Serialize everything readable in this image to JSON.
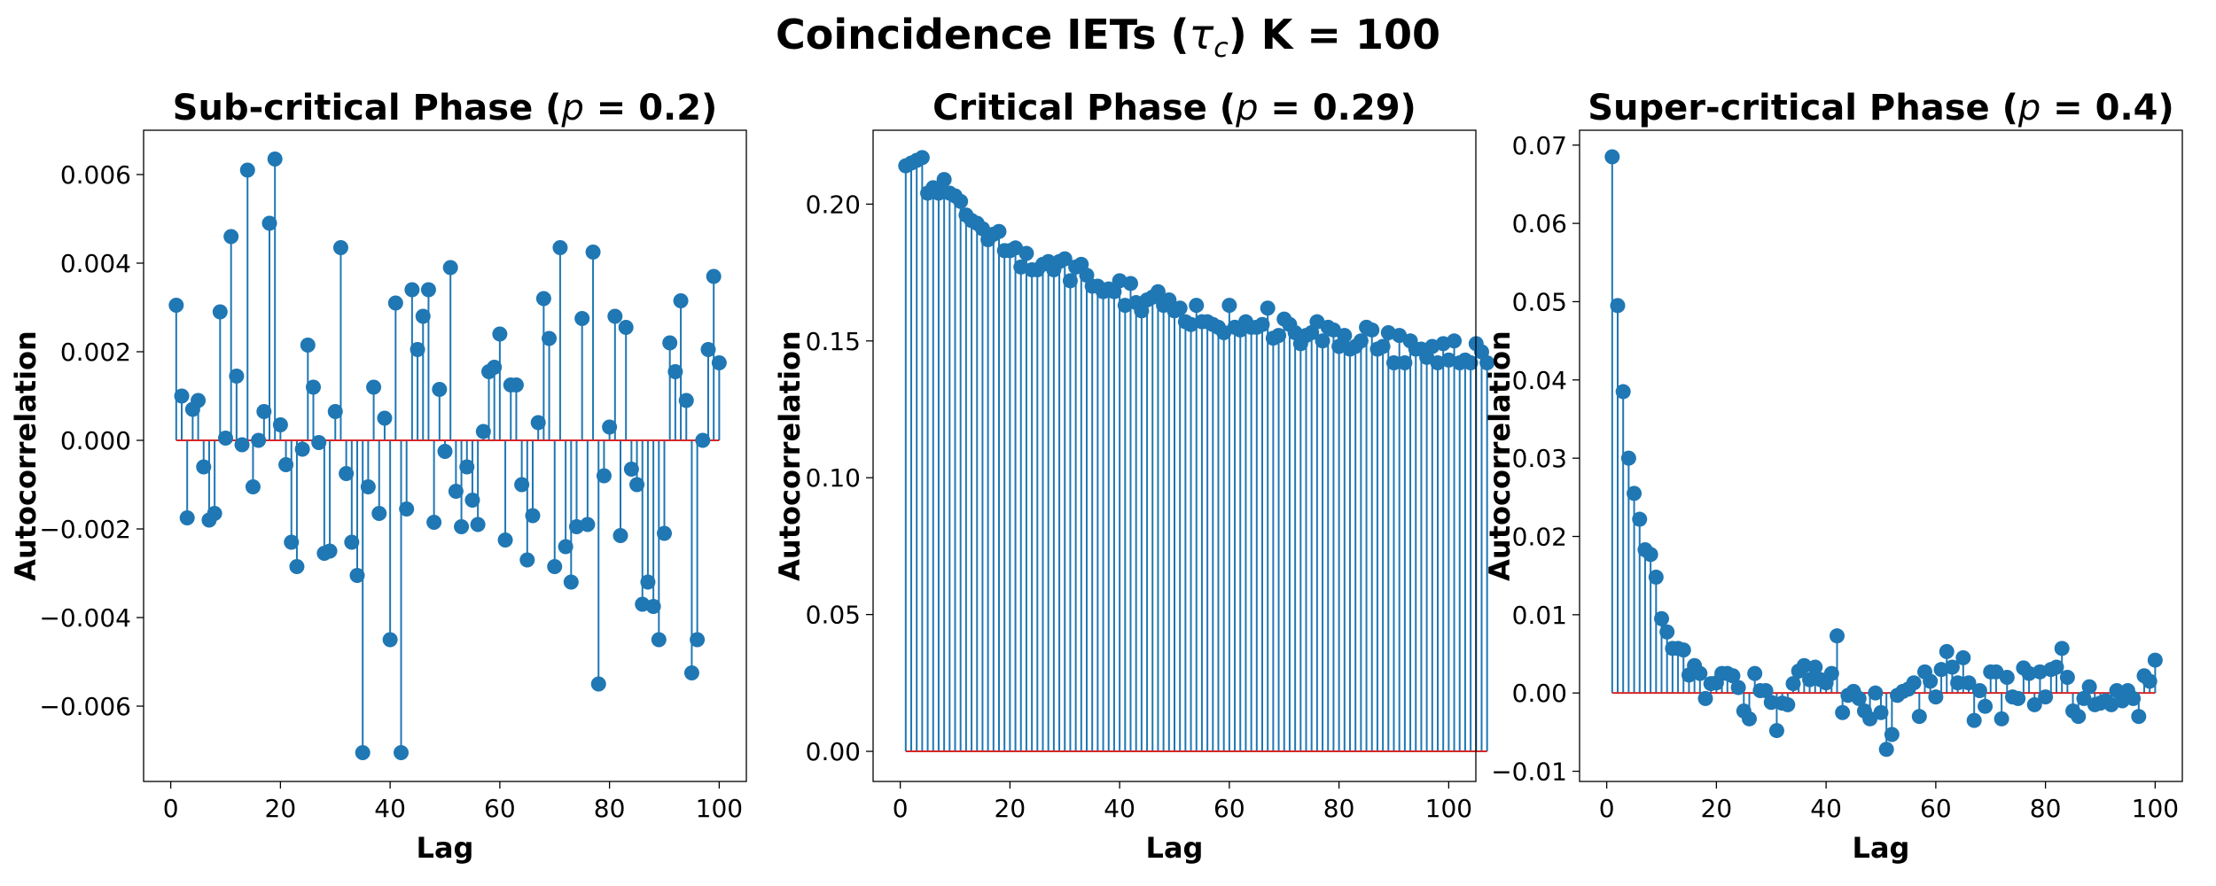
{
  "figure": {
    "title": "Coincidence IETs (τc) K = 100",
    "title_parts": {
      "prefix": "Coincidence IETs (",
      "tau": "τ",
      "sub": "c",
      "suffix": ") K = 100"
    }
  },
  "colors": {
    "stem": "#1f77b4",
    "baseline": "#d62728",
    "frame": "#000000"
  },
  "chart_data": [
    {
      "type": "stem",
      "title": "Sub-critical Phase (p = 0.2)",
      "title_parts": {
        "prefix": "Sub-critical Phase (",
        "var": "p",
        "suffix": " = 0.2)"
      },
      "xlabel": "Lag",
      "ylabel": "Autocorrelation",
      "xlim": [
        -4.95,
        104.95
      ],
      "ylim": [
        -0.0077,
        0.007
      ],
      "xticks": [
        0,
        20,
        40,
        60,
        80,
        100
      ],
      "xtick_labels": [
        "0",
        "20",
        "40",
        "60",
        "80",
        "100"
      ],
      "yticks": [
        -0.006,
        -0.004,
        -0.002,
        0.0,
        0.002,
        0.004,
        0.006
      ],
      "ytick_labels": [
        "−0.006",
        "−0.004",
        "−0.002",
        "0.000",
        "0.002",
        "0.004",
        "0.006"
      ],
      "grid": false,
      "x_start": 1,
      "values": [
        0.00305,
        0.001,
        -0.00175,
        0.0007,
        0.0009,
        -0.0006,
        -0.0018,
        -0.00165,
        0.0029,
        5e-05,
        0.0046,
        0.00145,
        -0.0001,
        0.0061,
        -0.00105,
        0.0,
        0.00065,
        0.0049,
        0.00635,
        0.00035,
        -0.00055,
        -0.0023,
        -0.00285,
        -0.0002,
        0.00215,
        0.0012,
        -5e-05,
        -0.00255,
        -0.0025,
        0.00065,
        0.00435,
        -0.00075,
        -0.0023,
        -0.00305,
        -0.00705,
        -0.00105,
        0.0012,
        -0.00165,
        0.0005,
        -0.0045,
        0.0031,
        -0.00705,
        -0.00155,
        0.0034,
        0.00205,
        0.0028,
        0.0034,
        -0.00185,
        0.00115,
        -0.00025,
        0.0039,
        -0.00115,
        -0.00195,
        -0.0006,
        -0.00135,
        -0.0019,
        0.0002,
        0.00155,
        0.00165,
        0.0024,
        -0.00225,
        0.00125,
        0.00125,
        -0.001,
        -0.0027,
        -0.0017,
        0.0004,
        0.0032,
        0.0023,
        -0.00285,
        0.00435,
        -0.0024,
        -0.0032,
        -0.00195,
        0.00275,
        -0.0019,
        0.00425,
        -0.0055,
        -0.0008,
        0.0003,
        0.0028,
        -0.00215,
        0.00255,
        -0.00065,
        -0.001,
        -0.0037,
        -0.0032,
        -0.00375,
        -0.0045,
        -0.0021,
        0.0022,
        0.00155,
        0.00315,
        0.0009,
        -0.00525,
        -0.0045,
        0.0,
        0.00205,
        0.0037,
        0.00175
      ]
    },
    {
      "type": "stem",
      "title": "Critical Phase (p = 0.29)",
      "title_parts": {
        "prefix": "Critical Phase (",
        "var": "p",
        "suffix": " = 0.29)"
      },
      "xlabel": "Lag",
      "ylabel": "Autocorrelation",
      "xlim": [
        -4.95,
        104.95
      ],
      "ylim": [
        -0.011,
        0.227
      ],
      "xticks": [
        0,
        20,
        40,
        60,
        80,
        100
      ],
      "xtick_labels": [
        "0",
        "20",
        "40",
        "60",
        "80",
        "100"
      ],
      "yticks": [
        0.0,
        0.05,
        0.1,
        0.15,
        0.2
      ],
      "ytick_labels": [
        "0.00",
        "0.05",
        "0.10",
        "0.15",
        "0.20"
      ],
      "grid": false,
      "x_start": 1,
      "values": [
        0.214,
        0.215,
        0.216,
        0.217,
        0.204,
        0.206,
        0.204,
        0.209,
        0.204,
        0.203,
        0.201,
        0.196,
        0.194,
        0.193,
        0.191,
        0.187,
        0.189,
        0.19,
        0.183,
        0.183,
        0.184,
        0.177,
        0.182,
        0.176,
        0.176,
        0.178,
        0.179,
        0.176,
        0.179,
        0.18,
        0.172,
        0.177,
        0.178,
        0.174,
        0.17,
        0.17,
        0.168,
        0.169,
        0.168,
        0.172,
        0.163,
        0.171,
        0.164,
        0.161,
        0.165,
        0.166,
        0.168,
        0.163,
        0.165,
        0.161,
        0.162,
        0.157,
        0.156,
        0.163,
        0.157,
        0.157,
        0.156,
        0.155,
        0.153,
        0.163,
        0.155,
        0.154,
        0.157,
        0.155,
        0.155,
        0.156,
        0.162,
        0.151,
        0.152,
        0.158,
        0.156,
        0.153,
        0.149,
        0.152,
        0.153,
        0.157,
        0.15,
        0.155,
        0.154,
        0.148,
        0.152,
        0.147,
        0.148,
        0.15,
        0.155,
        0.154,
        0.147,
        0.148,
        0.153,
        0.142,
        0.152,
        0.142,
        0.15,
        0.147,
        0.147,
        0.144,
        0.148,
        0.142,
        0.149,
        0.143,
        0.15,
        0.142,
        0.143,
        0.142,
        0.149,
        0.146,
        0.142
      ]
    },
    {
      "type": "stem",
      "title": "Super-critical Phase (p = 0.4)",
      "title_parts": {
        "prefix": "Super-critical Phase (",
        "var": "p",
        "suffix": " = 0.4)"
      },
      "xlabel": "Lag",
      "ylabel": "Autocorrelation",
      "xlim": [
        -4.95,
        104.95
      ],
      "ylim": [
        -0.0113,
        0.0719
      ],
      "xticks": [
        0,
        20,
        40,
        60,
        80,
        100
      ],
      "xtick_labels": [
        "0",
        "20",
        "40",
        "60",
        "80",
        "100"
      ],
      "yticks": [
        -0.01,
        0.0,
        0.01,
        0.02,
        0.03,
        0.04,
        0.05,
        0.06,
        0.07
      ],
      "ytick_labels": [
        "−0.01",
        "0.00",
        "0.01",
        "0.02",
        "0.03",
        "0.04",
        "0.05",
        "0.06",
        "0.07"
      ],
      "grid": false,
      "x_start": 1,
      "values": [
        0.0685,
        0.0495,
        0.0385,
        0.03,
        0.0255,
        0.0222,
        0.0183,
        0.0177,
        0.0148,
        0.0095,
        0.0078,
        0.0057,
        0.0057,
        0.0055,
        0.0023,
        0.0035,
        0.0025,
        -0.0007,
        0.0012,
        0.0013,
        0.0025,
        0.0025,
        0.0022,
        0.0007,
        -0.0023,
        -0.0033,
        0.0025,
        0.0003,
        0.0003,
        -0.0012,
        -0.0048,
        -0.0013,
        -0.0015,
        0.0012,
        0.0028,
        0.0035,
        0.0017,
        0.0033,
        0.0017,
        0.0013,
        0.0025,
        0.0073,
        -0.0025,
        -0.0003,
        0.0002,
        -0.0007,
        -0.0023,
        -0.0033,
        0.0,
        -0.0025,
        -0.0072,
        -0.0053,
        -0.0003,
        0.0002,
        0.0005,
        0.0013,
        -0.003,
        0.0027,
        0.0015,
        -0.0005,
        0.003,
        0.0053,
        0.0033,
        0.0013,
        0.0045,
        0.0013,
        -0.0035,
        0.0003,
        -0.0017,
        0.0027,
        0.0027,
        -0.0033,
        0.002,
        -0.0005,
        -0.0007,
        0.0032,
        0.0025,
        -0.0015,
        0.0027,
        -0.0005,
        0.003,
        0.0033,
        0.0057,
        0.002,
        -0.0023,
        -0.003,
        -0.0007,
        0.0008,
        -0.0015,
        -0.0013,
        -0.001,
        -0.0015,
        0.0003,
        -0.001,
        0.0003,
        -0.0007,
        -0.003,
        0.0022,
        0.0015,
        0.0042
      ]
    }
  ]
}
